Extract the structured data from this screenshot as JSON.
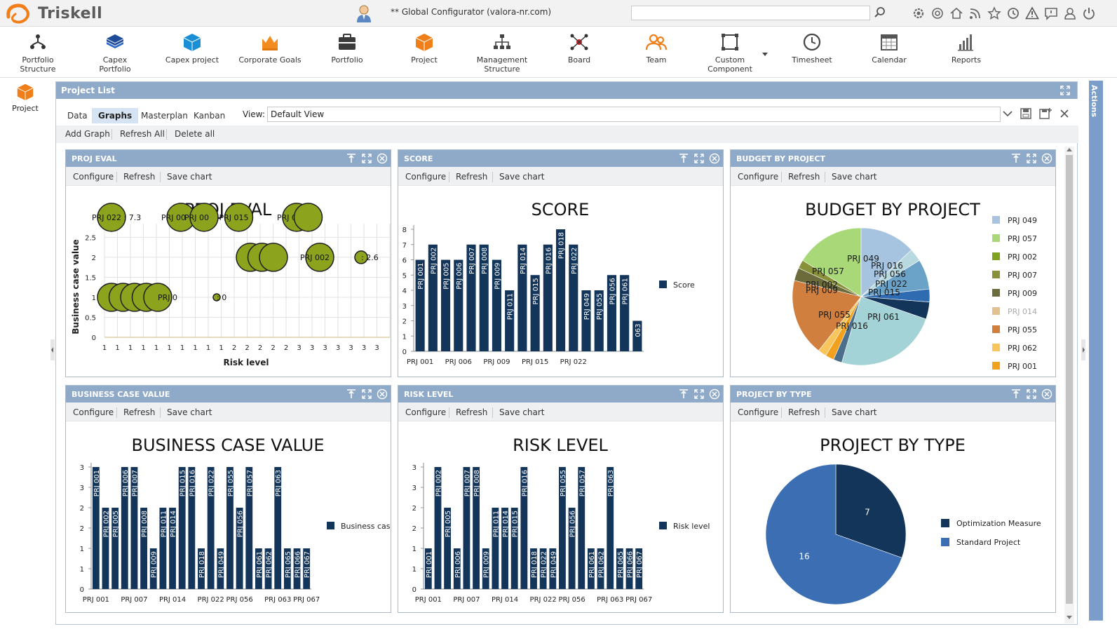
{
  "app": {
    "logo_text": "Triskell",
    "user_label": "** Global Configurator (valora-nr.com)",
    "search_placeholder": ""
  },
  "top_icons": [
    "search-icon",
    "settings-icon",
    "at-icon",
    "home-icon",
    "rss-icon",
    "star-icon",
    "history-icon",
    "warning-icon",
    "feedback-icon",
    "user-icon",
    "logout-icon"
  ],
  "modules": [
    {
      "label1": "Portfolio",
      "label2": "Structure",
      "icon": "portfolio-structure-icon"
    },
    {
      "label1": "Capex Portfolio",
      "label2": "",
      "icon": "capex-portfolio-icon"
    },
    {
      "label1": "Capex project",
      "label2": "",
      "icon": "capex-project-icon"
    },
    {
      "label1": "Corporate Goals",
      "label2": "",
      "icon": "corporate-goals-icon"
    },
    {
      "label1": "Portfolio",
      "label2": "",
      "icon": "portfolio-icon"
    },
    {
      "label1": "Project",
      "label2": "",
      "icon": "project-icon"
    },
    {
      "label1": "Management",
      "label2": "Structure",
      "icon": "management-structure-icon"
    },
    {
      "label1": "Board",
      "label2": "",
      "icon": "board-icon"
    },
    {
      "label1": "Team",
      "label2": "",
      "icon": "team-icon"
    },
    {
      "label1": "Custom",
      "label2": "Component",
      "icon": "custom-component-icon"
    },
    {
      "label1": "Timesheet",
      "label2": "",
      "icon": "timesheet-icon"
    },
    {
      "label1": "Calendar",
      "label2": "",
      "icon": "calendar-icon"
    },
    {
      "label1": "Reports",
      "label2": "",
      "icon": "reports-icon"
    }
  ],
  "left_nav": {
    "label": "Project"
  },
  "actions": {
    "label": "Actions"
  },
  "main": {
    "title": "Project List",
    "tabs": [
      "Data",
      "Graphs",
      "Masterplan",
      "Kanban"
    ],
    "active_tab": "Graphs",
    "view_label": "View:",
    "view_value": "Default View",
    "toolbar": [
      "Add Graph",
      "Refresh All",
      "Delete all"
    ]
  },
  "widget_tools": [
    "Configure",
    "Refresh",
    "Save chart"
  ],
  "widgets": [
    {
      "header": "PROJ EVAL",
      "title": "PROJ EVAL"
    },
    {
      "header": "SCORE",
      "title": "SCORE"
    },
    {
      "header": "BUDGET BY PROJECT",
      "title": "BUDGET BY PROJECT"
    },
    {
      "header": "BUSINESS CASE VALUE",
      "title": "BUSINESS CASE VALUE"
    },
    {
      "header": "RISK LEVEL",
      "title": "RISK LEVEL"
    },
    {
      "header": "PROJECT BY TYPE",
      "title": "PROJECT BY TYPE"
    }
  ],
  "chart_data": [
    {
      "type": "scatter",
      "title": "PROJ EVAL",
      "xlabel": "Risk level",
      "ylabel": "Business case value",
      "ylim": [
        0,
        3
      ],
      "y_ticks": [
        "0",
        "0.5",
        "1",
        "1.5",
        "2",
        "2.5"
      ],
      "x_ticks": [
        "1",
        "1",
        "1",
        "1",
        "1",
        "1",
        "1",
        "1",
        "1",
        "1",
        "2",
        "2",
        "2",
        "2",
        "2",
        "3",
        "3",
        "3",
        "3",
        "3",
        "3",
        "3"
      ],
      "points": [
        {
          "x": 1,
          "y": 3,
          "label": "PRJ 022 : 7.3"
        },
        {
          "x": 1,
          "y": 1,
          "label": "PR"
        },
        {
          "x": 1,
          "y": 1,
          "label": ""
        },
        {
          "x": 1,
          "y": 1,
          "label": ""
        },
        {
          "x": 1,
          "y": 1,
          "label": ""
        },
        {
          "x": 1,
          "y": 1,
          "label": "PRJ 0"
        },
        {
          "x": 1,
          "y": 3,
          "label": "PRJ 00"
        },
        {
          "x": 1,
          "y": 3,
          "label": "PRJ 00"
        },
        {
          "x": 2,
          "y": 3,
          "label": "PRJ 015"
        },
        {
          "x": 2,
          "y": 2,
          "label": "PR"
        },
        {
          "x": 2,
          "y": 2,
          "label": ""
        },
        {
          "x": 2,
          "y": 2,
          "label": ""
        },
        {
          "x": 3,
          "y": 3,
          "label": "PRJ 05"
        },
        {
          "x": 3,
          "y": 3,
          "label": ""
        },
        {
          "x": 3,
          "y": 2,
          "label": "PRJ 002"
        },
        {
          "x": 3,
          "y": 2,
          "label": ": 2.6"
        },
        {
          "x": 1,
          "y": 1,
          "label": ": 0"
        }
      ]
    },
    {
      "type": "bar",
      "title": "SCORE",
      "ylim": [
        0,
        8
      ],
      "legend": "Score",
      "categories": [
        "PRJ 001",
        "PRJ 002",
        "PRJ 005",
        "PRJ 006",
        "PRJ 007",
        "PRJ 008",
        "PRJ 009",
        "PRJ 011",
        "PRJ 014",
        "PRJ 015",
        "PRJ 016",
        "PRJ 018",
        "PRJ 022",
        "PRJ 049",
        "PRJ 055",
        "PRJ 056",
        "PRJ 061",
        "063"
      ],
      "values": [
        6,
        7,
        6,
        6,
        7,
        7,
        6,
        4,
        7,
        5,
        7,
        8,
        7,
        4,
        4,
        5,
        5,
        2
      ],
      "x_tick_labels": [
        "PRJ 001",
        "PRJ 006",
        "PRJ 009",
        "PRJ 015",
        "PRJ 022",
        "PRJ 063"
      ]
    },
    {
      "type": "pie",
      "title": "BUDGET BY PROJECT",
      "legend": [
        "PRJ 049",
        "PRJ 057",
        "PRJ 002",
        "PRJ 007",
        "PRJ 009",
        "PRJ 014",
        "PRJ 055",
        "PRJ 062",
        "PRJ 001"
      ],
      "slice_labels": [
        "PRJ 049",
        "PRJ 016",
        "PRJ 056",
        "PRJ 057",
        "PRJ 002",
        "PRJ 009",
        "PRJ 022",
        "PRJ 015",
        "PRJ 055",
        "PRJ 061",
        "PRJ 016"
      ],
      "slices": [
        {
          "name": "PRJ 049",
          "value": 13,
          "color": "#a6c4e0"
        },
        {
          "name": "PRJ 016",
          "value": 3,
          "color": "#b9d9e0"
        },
        {
          "name": "PRJ 056",
          "value": 7,
          "color": "#6ba3c8"
        },
        {
          "name": "PRJ 022",
          "value": 3,
          "color": "#2f6bb0"
        },
        {
          "name": "PRJ 015",
          "value": 4,
          "color": "#14355a"
        },
        {
          "name": "PRJ 061",
          "value": 24,
          "color": "#a3d3d6"
        },
        {
          "name": "PRJ 016",
          "value": 2,
          "color": "#4b6f8a"
        },
        {
          "name": "PRJ 001",
          "value": 2,
          "color": "#f2a11e"
        },
        {
          "name": "PRJ 062",
          "value": 2,
          "color": "#f7c55b"
        },
        {
          "name": "PRJ 055",
          "value": 18,
          "color": "#d07f3f"
        },
        {
          "name": "PRJ 009",
          "value": 3,
          "color": "#6b6b3c"
        },
        {
          "name": "PRJ 007",
          "value": 2,
          "color": "#88913a"
        },
        {
          "name": "PRJ 057",
          "value": 16,
          "color": "#a8d877"
        }
      ]
    },
    {
      "type": "bar",
      "title": "BUSINESS CASE VALUE",
      "ylim": [
        0,
        3
      ],
      "y_ticks": [
        "0",
        "1",
        "1",
        "2",
        "2",
        "3",
        "3"
      ],
      "legend": "Business case",
      "categories": [
        "PRJ 001",
        "PRJ 002",
        "PRJ 005",
        "PRJ 006",
        "PRJ 007",
        "PRJ 008",
        "PRJ 009",
        "PRJ 011",
        "PRJ 014",
        "PRJ 015",
        "PRJ 016",
        "PRJ 018",
        "PRJ 022",
        "PRJ 049",
        "PRJ 055",
        "PRJ 056",
        "PRJ 057",
        "PRJ 061",
        "PRJ 062",
        "PRJ 063",
        "PRJ 065",
        "PRJ 066",
        "PRJ 067"
      ],
      "values": [
        3,
        2,
        2,
        3,
        3,
        2,
        1,
        2,
        2,
        3,
        3,
        1,
        3,
        1,
        3,
        2,
        3,
        1,
        1,
        3,
        1,
        1,
        1
      ],
      "x_tick_labels": [
        "PRJ 001",
        "PRJ 007",
        "PRJ 014",
        "PRJ 022",
        "PRJ 056",
        "PRJ 063",
        "PRJ 067"
      ]
    },
    {
      "type": "bar",
      "title": "RISK LEVEL",
      "ylim": [
        0,
        3
      ],
      "y_ticks": [
        "0",
        "1",
        "1",
        "2",
        "2",
        "3",
        "3"
      ],
      "legend": "Risk level",
      "categories": [
        "PRJ 001",
        "PRJ 002",
        "PRJ 005",
        "PRJ 006",
        "PRJ 007",
        "PRJ 008",
        "PRJ 009",
        "PRJ 011",
        "PRJ 014",
        "PRJ 015",
        "PRJ 016",
        "PRJ 018",
        "PRJ 022",
        "PRJ 049",
        "PRJ 055",
        "PRJ 056",
        "PRJ 057",
        "PRJ 061",
        "PRJ 062",
        "PRJ 063",
        "PRJ 065",
        "PRJ 066",
        "PRJ 067"
      ],
      "values": [
        1,
        3,
        2,
        1,
        3,
        3,
        1,
        2,
        2,
        2,
        3,
        1,
        1,
        1,
        3,
        2,
        3,
        1,
        1,
        3,
        1,
        1,
        1
      ],
      "x_tick_labels": [
        "PRJ 001",
        "PRJ 007",
        "PRJ 014",
        "PRJ 022",
        "PRJ 056",
        "PRJ 063",
        "PRJ 067"
      ]
    },
    {
      "type": "pie",
      "title": "PROJECT BY TYPE",
      "slices": [
        {
          "name": "Optimization Measure",
          "value": 7,
          "color": "#14355a"
        },
        {
          "name": "Standard Project",
          "value": 16,
          "color": "#3b6eb3"
        }
      ]
    }
  ]
}
